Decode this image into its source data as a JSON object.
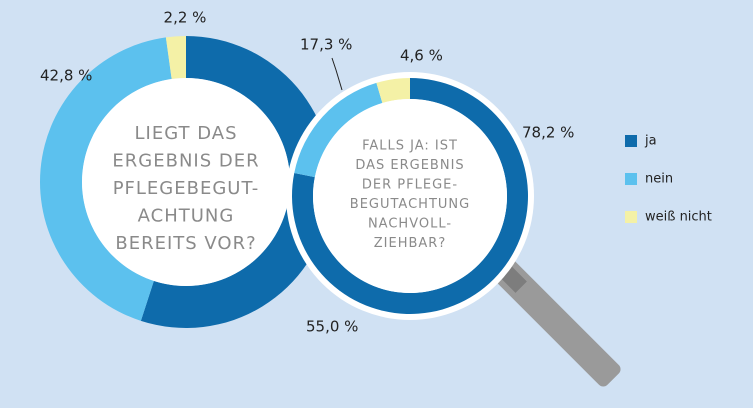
{
  "chart_data": [
    {
      "type": "donut",
      "title": [
        "LIEGT DAS",
        "ERGEBNIS DER",
        "PFLEGEBEGUT-",
        "ACHTUNG",
        "BEREITS VOR?"
      ],
      "values": [
        55.0,
        42.8,
        2.2
      ],
      "value_labels": [
        "55,0 %",
        "42,8 %",
        "2,2 %"
      ]
    },
    {
      "type": "donut",
      "title": [
        "FALLS JA: IST",
        "DAS ERGEBNIS",
        "DER PFLEGE-",
        "BEGUTACHTUNG",
        "NACHVOLL-",
        "ZIEHBAR?"
      ],
      "values": [
        78.2,
        17.3,
        4.6
      ],
      "value_labels": [
        "78,2 %",
        "17,3 %",
        "4,6 %"
      ]
    }
  ],
  "legend": {
    "labels": [
      "ja",
      "nein",
      "weiß nicht"
    ],
    "colors": [
      "#0e6bab",
      "#5cc1ee",
      "#f4f1a6"
    ]
  }
}
